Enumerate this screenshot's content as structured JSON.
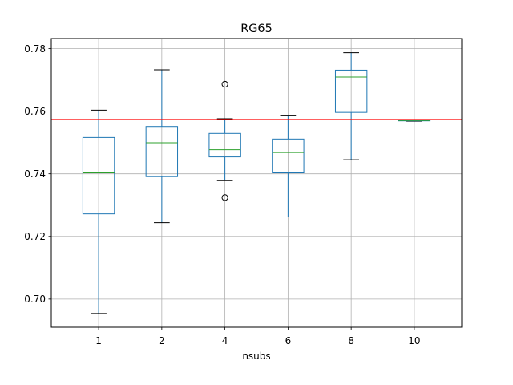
{
  "chart_data": {
    "type": "box",
    "title": "RG65",
    "xlabel": "nsubs",
    "ylabel": "",
    "categories": [
      "1",
      "2",
      "4",
      "6",
      "8",
      "10"
    ],
    "ylim": [
      0.691,
      0.7832
    ],
    "yticks": [
      0.7,
      0.72,
      0.74,
      0.76,
      0.78
    ],
    "ytick_labels": [
      "0.70",
      "0.72",
      "0.74",
      "0.76",
      "0.78"
    ],
    "grid": true,
    "reference_line": {
      "value": 0.7573,
      "color": "#ff0000"
    },
    "box_color": "#1f77b4",
    "median_color": "#2ca02c",
    "boxes": [
      {
        "whisker_low": 0.6954,
        "q1": 0.7272,
        "median": 0.7403,
        "q3": 0.7516,
        "whisker_high": 0.7603,
        "outliers": []
      },
      {
        "whisker_low": 0.7244,
        "q1": 0.7391,
        "median": 0.7499,
        "q3": 0.7551,
        "whisker_high": 0.7732,
        "outliers": []
      },
      {
        "whisker_low": 0.7378,
        "q1": 0.7454,
        "median": 0.7477,
        "q3": 0.7529,
        "whisker_high": 0.7576,
        "outliers": [
          0.7686,
          0.7324
        ]
      },
      {
        "whisker_low": 0.7262,
        "q1": 0.7403,
        "median": 0.7468,
        "q3": 0.7511,
        "whisker_high": 0.7587,
        "outliers": []
      },
      {
        "whisker_low": 0.7445,
        "q1": 0.7596,
        "median": 0.7709,
        "q3": 0.7731,
        "whisker_high": 0.7787,
        "outliers": []
      },
      {
        "whisker_low": 0.7568,
        "q1": 0.7569,
        "median": 0.757,
        "q3": 0.7571,
        "whisker_high": 0.7572,
        "outliers": []
      }
    ]
  }
}
